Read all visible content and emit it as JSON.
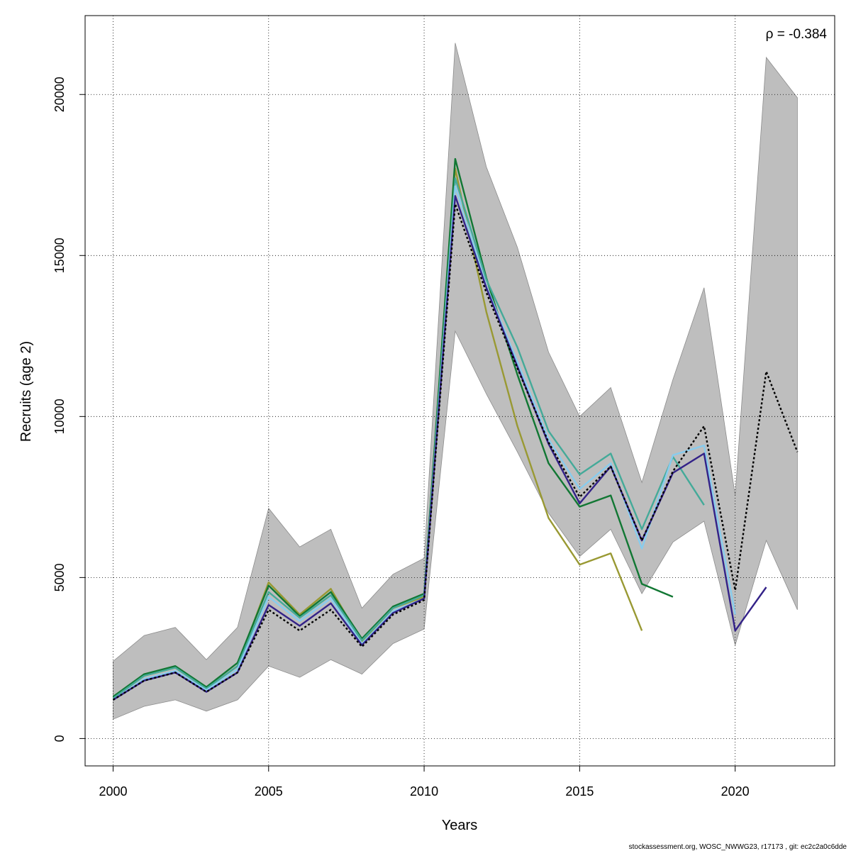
{
  "chart_data": {
    "type": "line",
    "xlabel": "Years",
    "ylabel": "Recruits (age 2)",
    "xlim": [
      1999.1,
      2023.2
    ],
    "ylim": [
      -850,
      22450
    ],
    "x_ticks": [
      2000,
      2005,
      2010,
      2015,
      2020
    ],
    "y_ticks": [
      0,
      5000,
      10000,
      15000,
      20000
    ],
    "x_tick_labels": [
      "2000",
      "2005",
      "2010",
      "2015",
      "2020"
    ],
    "y_tick_labels": [
      "0",
      "5000",
      "10000",
      "15000",
      "20000"
    ],
    "grid": true,
    "annotation": "ρ = -0.384",
    "footer": "stockassessment.org, WOSC_NWWG23, r17173 , git: ec2c2a0c6dde",
    "band": {
      "color": "#bebebe",
      "x": [
        2000,
        2001,
        2002,
        2003,
        2004,
        2005,
        2006,
        2007,
        2008,
        2009,
        2010,
        2011,
        2012,
        2013,
        2014,
        2015,
        2016,
        2017,
        2018,
        2019,
        2020,
        2021,
        2022
      ],
      "upper": [
        2400,
        3200,
        3450,
        2450,
        3450,
        7150,
        5950,
        6500,
        4050,
        5100,
        5600,
        21600,
        17750,
        15250,
        12000,
        10000,
        10900,
        7950,
        11150,
        14000,
        7550,
        21150,
        19900
      ],
      "lower": [
        600,
        1000,
        1200,
        850,
        1200,
        2250,
        1900,
        2450,
        2000,
        2950,
        3400,
        12650,
        10700,
        8900,
        7000,
        5650,
        6500,
        4500,
        6100,
        6750,
        2900,
        6150,
        4000
      ]
    },
    "series": [
      {
        "color": "#999933",
        "x": [
          2000,
          2001,
          2002,
          2003,
          2004,
          2005,
          2006,
          2007,
          2008,
          2009,
          2010,
          2011,
          2012,
          2013,
          2014,
          2015,
          2016,
          2017
        ],
        "values": [
          1250,
          1950,
          2200,
          1550,
          2250,
          4850,
          3850,
          4650,
          3000,
          4050,
          4400,
          17700,
          13250,
          9700,
          6850,
          5400,
          5750,
          3350
        ]
      },
      {
        "color": "#117733",
        "x": [
          2000,
          2001,
          2002,
          2003,
          2004,
          2005,
          2006,
          2007,
          2008,
          2009,
          2010,
          2011,
          2012,
          2013,
          2014,
          2015,
          2016,
          2017,
          2018
        ],
        "values": [
          1300,
          2000,
          2250,
          1600,
          2350,
          4750,
          3800,
          4550,
          3100,
          4100,
          4500,
          18000,
          14300,
          11300,
          8550,
          7200,
          7550,
          4800,
          4400
        ]
      },
      {
        "color": "#44aa99",
        "x": [
          2000,
          2001,
          2002,
          2003,
          2004,
          2005,
          2006,
          2007,
          2008,
          2009,
          2010,
          2011,
          2012,
          2013,
          2014,
          2015,
          2016,
          2017,
          2018,
          2019
        ],
        "values": [
          1250,
          1950,
          2200,
          1550,
          2250,
          4550,
          3750,
          4450,
          3050,
          4050,
          4450,
          17400,
          14250,
          12150,
          9550,
          8200,
          8850,
          6500,
          8750,
          7250
        ]
      },
      {
        "color": "#88ccee",
        "x": [
          2000,
          2001,
          2002,
          2003,
          2004,
          2005,
          2006,
          2007,
          2008,
          2009,
          2010,
          2011,
          2012,
          2013,
          2014,
          2015,
          2016,
          2017,
          2018,
          2019,
          2020
        ],
        "values": [
          1200,
          1850,
          2100,
          1500,
          2150,
          4400,
          3650,
          4350,
          2950,
          3950,
          4350,
          17150,
          14050,
          11700,
          9300,
          7750,
          8550,
          5900,
          8800,
          9100,
          3850
        ]
      },
      {
        "color": "#332288",
        "x": [
          2000,
          2001,
          2002,
          2003,
          2004,
          2005,
          2006,
          2007,
          2008,
          2009,
          2010,
          2011,
          2012,
          2013,
          2014,
          2015,
          2016,
          2017,
          2018,
          2019,
          2020,
          2021
        ],
        "values": [
          1200,
          1800,
          2050,
          1450,
          2050,
          4150,
          3500,
          4200,
          2900,
          3900,
          4350,
          16850,
          14000,
          11550,
          9150,
          7300,
          8450,
          6150,
          8250,
          8850,
          3350,
          4700
        ]
      },
      {
        "color": "#000000",
        "dashed": true,
        "x": [
          2000,
          2001,
          2002,
          2003,
          2004,
          2005,
          2006,
          2007,
          2008,
          2009,
          2010,
          2011,
          2012,
          2013,
          2014,
          2015,
          2016,
          2017,
          2018,
          2019,
          2020,
          2021,
          2022
        ],
        "values": [
          1200,
          1800,
          2050,
          1450,
          2050,
          4000,
          3350,
          4000,
          2850,
          3850,
          4300,
          16600,
          13850,
          11500,
          9200,
          7500,
          8450,
          6150,
          8300,
          9700,
          4600,
          11400,
          8900
        ]
      }
    ]
  }
}
